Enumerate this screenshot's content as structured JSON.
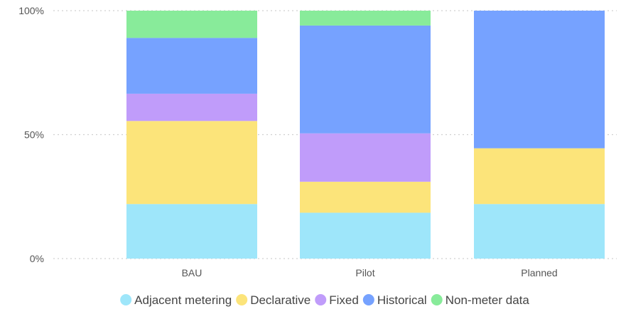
{
  "chart_data": {
    "type": "bar",
    "stacked": true,
    "normalized": true,
    "categories": [
      "BAU",
      "Pilot",
      "Planned"
    ],
    "series": [
      {
        "name": "Adjacent metering",
        "color": "#9ee6fa",
        "values": [
          22,
          18.5,
          22
        ]
      },
      {
        "name": "Declarative",
        "color": "#fce47a",
        "values": [
          33.5,
          12.5,
          22.5
        ]
      },
      {
        "name": "Fixed",
        "color": "#c09cfa",
        "values": [
          11,
          19.5,
          0
        ]
      },
      {
        "name": "Historical",
        "color": "#76a2ff",
        "values": [
          22.5,
          43.5,
          55.5
        ]
      },
      {
        "name": "Non-meter data",
        "color": "#88eb9a",
        "values": [
          11,
          6,
          0
        ]
      }
    ],
    "y_ticks": [
      "0%",
      "50%",
      "100%"
    ],
    "ylim": [
      0,
      100
    ],
    "grid": true,
    "legend_position": "bottom"
  }
}
